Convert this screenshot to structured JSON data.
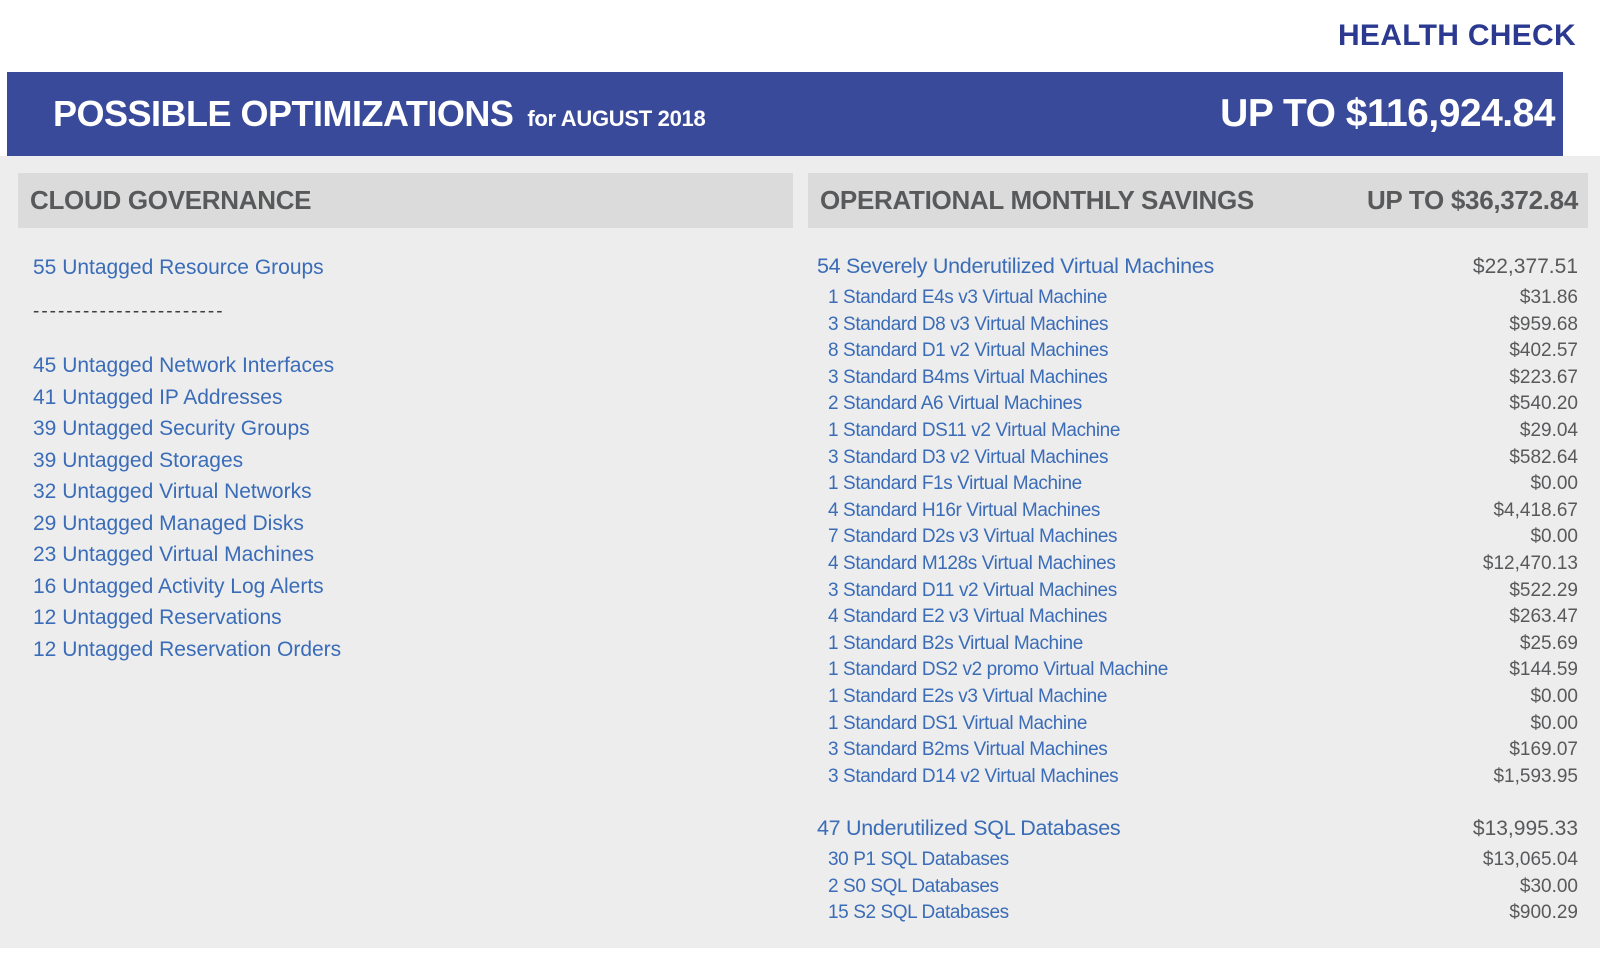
{
  "page": {
    "health_check": "HEALTH CHECK",
    "title": "POSSIBLE OPTIMIZATIONS",
    "subtitle": "for AUGUST 2018",
    "total": "UP TO $116,924.84"
  },
  "colors": {
    "navy_text": "#2b3990",
    "banner_blue": "#3a4a9b",
    "link_blue": "#3a6cb8",
    "header_band_gray": "#dbdbdb",
    "background_gray": "#ededed",
    "value_gray": "#58595b"
  },
  "cloud_governance": {
    "title": "CLOUD GOVERNANCE",
    "top_item": "55 Untagged Resource Groups",
    "divider": "-----------------------",
    "items": [
      "45 Untagged Network Interfaces",
      "41 Untagged IP Addresses",
      "39 Untagged Security Groups",
      "39 Untagged Storages",
      "32 Untagged Virtual Networks",
      "29 Untagged Managed Disks",
      "23 Untagged Virtual Machines",
      "16 Untagged Activity Log Alerts",
      "12 Untagged Reservations",
      "12 Untagged Reservation Orders"
    ]
  },
  "operational_savings": {
    "title": "OPERATIONAL MONTHLY SAVINGS",
    "total": "UP TO $36,372.84",
    "groups": [
      {
        "label": "54 Severely Underutilized Virtual Machines",
        "amount": "$22,377.51",
        "items": [
          {
            "label": "1 Standard E4s v3 Virtual Machine",
            "amount": "$31.86"
          },
          {
            "label": "3 Standard D8 v3 Virtual Machines",
            "amount": "$959.68"
          },
          {
            "label": "8 Standard D1 v2 Virtual Machines",
            "amount": "$402.57"
          },
          {
            "label": "3 Standard B4ms Virtual Machines",
            "amount": "$223.67"
          },
          {
            "label": "2 Standard A6 Virtual Machines",
            "amount": "$540.20"
          },
          {
            "label": "1 Standard DS11 v2 Virtual Machine",
            "amount": "$29.04"
          },
          {
            "label": "3 Standard D3 v2 Virtual Machines",
            "amount": "$582.64"
          },
          {
            "label": "1 Standard F1s Virtual Machine",
            "amount": "$0.00"
          },
          {
            "label": "4 Standard H16r Virtual Machines",
            "amount": "$4,418.67"
          },
          {
            "label": "7 Standard D2s v3 Virtual Machines",
            "amount": "$0.00"
          },
          {
            "label": "4 Standard M128s Virtual Machines",
            "amount": "$12,470.13"
          },
          {
            "label": "3 Standard D11 v2 Virtual Machines",
            "amount": "$522.29"
          },
          {
            "label": "4 Standard E2 v3 Virtual Machines",
            "amount": "$263.47"
          },
          {
            "label": "1 Standard B2s Virtual Machine",
            "amount": "$25.69"
          },
          {
            "label": "1 Standard DS2 v2 promo Virtual Machine",
            "amount": "$144.59"
          },
          {
            "label": "1 Standard E2s v3 Virtual Machine",
            "amount": "$0.00"
          },
          {
            "label": "1 Standard DS1 Virtual Machine",
            "amount": "$0.00"
          },
          {
            "label": "3 Standard B2ms Virtual Machines",
            "amount": "$169.07"
          },
          {
            "label": "3 Standard D14 v2 Virtual Machines",
            "amount": "$1,593.95"
          }
        ]
      },
      {
        "label": "47 Underutilized SQL Databases",
        "amount": "$13,995.33",
        "items": [
          {
            "label": "30 P1 SQL Databases",
            "amount": "$13,065.04"
          },
          {
            "label": "2 S0 SQL Databases",
            "amount": "$30.00"
          },
          {
            "label": "15 S2 SQL Databases",
            "amount": "$900.29"
          }
        ]
      }
    ]
  }
}
